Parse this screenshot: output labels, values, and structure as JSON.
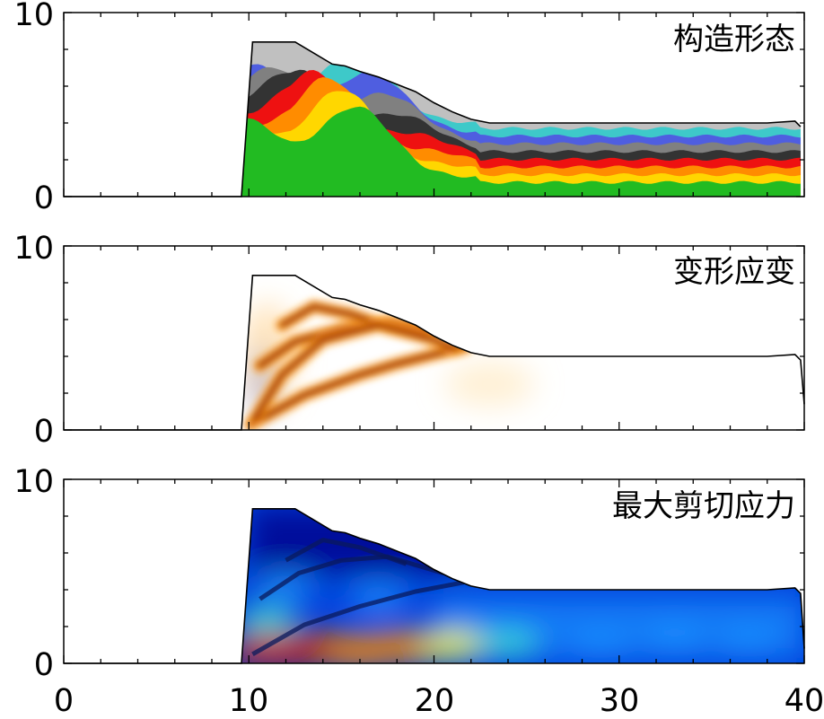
{
  "chart_data": [
    {
      "type": "area",
      "title": "构造形态",
      "xlim": [
        0,
        40
      ],
      "ylim": [
        0,
        10
      ],
      "ytick_labels": [
        "0",
        "10"
      ],
      "surface": {
        "x": [
          0,
          9.6,
          10.2,
          12.5,
          13.5,
          14.5,
          15.2,
          16,
          17,
          18,
          19,
          20,
          21,
          22,
          23,
          30,
          38,
          39.5,
          39.8
        ],
        "y": [
          0,
          0,
          8.4,
          8.4,
          7.8,
          7.2,
          7.1,
          6.8,
          6.5,
          6.1,
          5.7,
          5.1,
          4.6,
          4.2,
          4.0,
          4.0,
          4.0,
          4.1,
          3.8
        ]
      },
      "layer_colors": [
        "#c0c0c0",
        "#22bb22",
        "#ffd700",
        "#ff8c00",
        "#ee1111",
        "#333333",
        "#808080",
        "#4f5ee0",
        "#3ec9c9"
      ]
    },
    {
      "type": "heatmap",
      "title": "变形应变",
      "xlim": [
        0,
        40
      ],
      "ylim": [
        0,
        10
      ],
      "ytick_labels": [
        "0",
        "10"
      ],
      "surface": {
        "x": [
          0,
          9.6,
          10.2,
          12.5,
          13.5,
          14.5,
          15.2,
          16,
          17,
          18,
          19,
          20,
          21,
          22,
          23,
          30,
          38,
          39.5,
          39.8,
          40
        ],
        "y": [
          0,
          0,
          8.4,
          8.4,
          7.8,
          7.2,
          7.1,
          6.8,
          6.5,
          6.1,
          5.7,
          5.1,
          4.6,
          4.2,
          4.0,
          4.0,
          4.0,
          4.1,
          3.8,
          1.4
        ]
      },
      "strain_bands": [
        {
          "x": [
            10.1,
            13,
            16,
            18,
            20,
            21.7
          ],
          "y": [
            0.3,
            1.9,
            3.0,
            3.6,
            4.1,
            4.5
          ]
        },
        {
          "x": [
            10.6,
            12.5,
            15,
            17.5,
            20
          ],
          "y": [
            3.5,
            4.8,
            5.5,
            5.9,
            5.5
          ]
        },
        {
          "x": [
            11.8,
            13.5,
            15.5,
            17.5,
            19.5
          ],
          "y": [
            5.7,
            6.7,
            6.3,
            5.6,
            5.3
          ]
        },
        {
          "x": [
            10.3,
            11.8,
            14,
            17,
            20,
            21.2
          ],
          "y": [
            0.6,
            3.0,
            4.9,
            5.7,
            4.9,
            4.4
          ]
        }
      ],
      "colors": {
        "low": "#ffffff",
        "mid": "#ff9a1a",
        "high": "#a23508",
        "negative": "#3355cc"
      }
    },
    {
      "type": "heatmap",
      "title": "最大剪切应力",
      "xlim": [
        0,
        40
      ],
      "ylim": [
        0,
        10
      ],
      "xtick_labels": [
        "0",
        "10",
        "20",
        "30",
        "40"
      ],
      "ytick_labels": [
        "0",
        "10"
      ],
      "surface": {
        "x": [
          0,
          9.6,
          10.2,
          12.5,
          13.5,
          14.5,
          15.2,
          16,
          17,
          18,
          19,
          20,
          21,
          22,
          23,
          30,
          38,
          39.5,
          39.8,
          40
        ],
        "y": [
          0,
          0,
          8.4,
          8.4,
          7.8,
          7.2,
          7.1,
          6.8,
          6.5,
          6.1,
          5.7,
          5.1,
          4.6,
          4.2,
          4.0,
          4.0,
          4.0,
          4.1,
          3.8,
          0.8
        ]
      },
      "hotspots": [
        {
          "x": 11,
          "y": 0.7,
          "level": 1.0
        },
        {
          "x": 13.5,
          "y": 0.8,
          "level": 0.9
        },
        {
          "x": 16,
          "y": 0.7,
          "level": 0.85
        },
        {
          "x": 18.5,
          "y": 0.9,
          "level": 0.8
        },
        {
          "x": 21,
          "y": 1.0,
          "level": 0.6
        },
        {
          "x": 24,
          "y": 1.1,
          "level": 0.45
        },
        {
          "x": 29,
          "y": 1.0,
          "level": 0.35
        },
        {
          "x": 33,
          "y": 1.4,
          "level": 0.3
        },
        {
          "x": 37,
          "y": 1.2,
          "level": 0.3
        },
        {
          "x": 17,
          "y": 3.6,
          "level": 0.35
        },
        {
          "x": 12,
          "y": 4.2,
          "level": 0.3
        },
        {
          "x": 11,
          "y": 2.4,
          "level": 0.4
        }
      ],
      "colors": [
        "#00008b",
        "#0044dd",
        "#1e90ff",
        "#40e0d0",
        "#ffff40",
        "#ff8800",
        "#cc2200"
      ]
    }
  ]
}
